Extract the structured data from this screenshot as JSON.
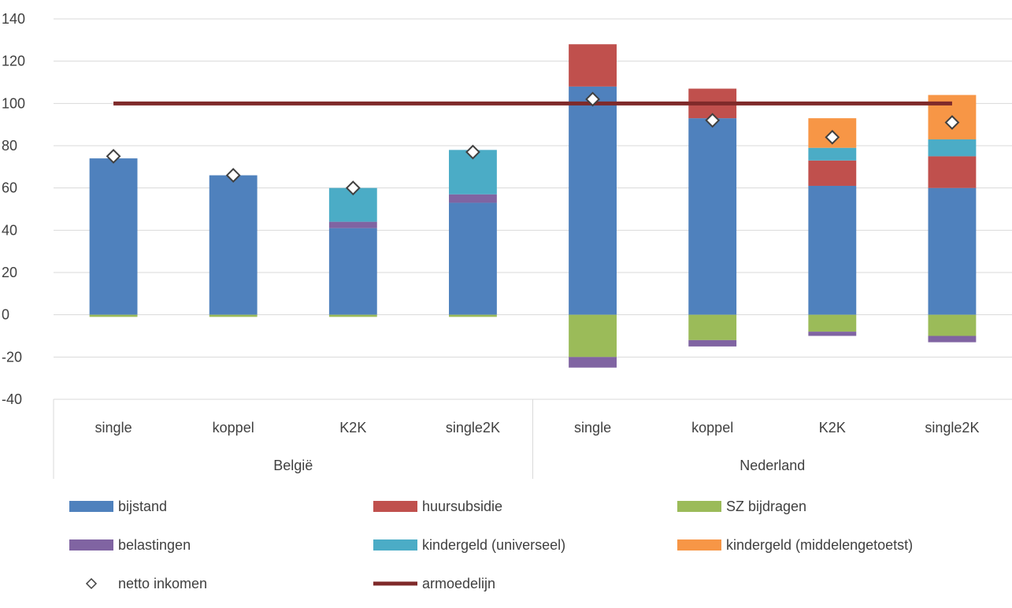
{
  "chart_data": {
    "type": "bar",
    "stacked": true,
    "ylim": [
      -40,
      140
    ],
    "ytick_step": 20,
    "yticks": [
      "140",
      "120",
      "100",
      "80",
      "60",
      "40",
      "20",
      "0",
      "-20",
      "-40"
    ],
    "grid": true,
    "legend_position": "bottom",
    "groups": [
      {
        "name": "België",
        "categories": [
          "single",
          "koppel",
          "K2K",
          "single2K"
        ]
      },
      {
        "name": "Nederland",
        "categories": [
          "single",
          "koppel",
          "K2K",
          "single2K"
        ]
      }
    ],
    "series": [
      {
        "name": "bijstand",
        "color": "#4f81bd",
        "values": [
          74,
          66,
          41,
          53,
          108,
          93,
          61,
          60
        ]
      },
      {
        "name": "huursubsidie",
        "color": "#c0504d",
        "values": [
          0,
          0,
          0,
          0,
          20,
          14,
          12,
          15
        ]
      },
      {
        "name": "SZ bijdragen",
        "color": "#9bbb59",
        "values": [
          -1,
          -1,
          -1,
          -1,
          -20,
          -12,
          -8,
          -10
        ]
      },
      {
        "name": "belastingen",
        "color": "#8064a2",
        "values": [
          0,
          0,
          3,
          4,
          -5,
          -3,
          -2,
          -3
        ]
      },
      {
        "name": "kindergeld (universeel)",
        "color": "#4bacc6",
        "values": [
          0,
          0,
          16,
          21,
          0,
          0,
          6,
          8
        ]
      },
      {
        "name": "kindergeld (middelengetoetst)",
        "color": "#f79646",
        "values": [
          0,
          0,
          0,
          0,
          0,
          0,
          14,
          21
        ]
      }
    ],
    "markers": {
      "name": "netto inkomen",
      "symbol": "diamond",
      "values": [
        75,
        66,
        60,
        77,
        102,
        92,
        84,
        91
      ]
    },
    "line": {
      "name": "armoedelijn",
      "color": "#7f2a2a",
      "value": 100
    }
  }
}
